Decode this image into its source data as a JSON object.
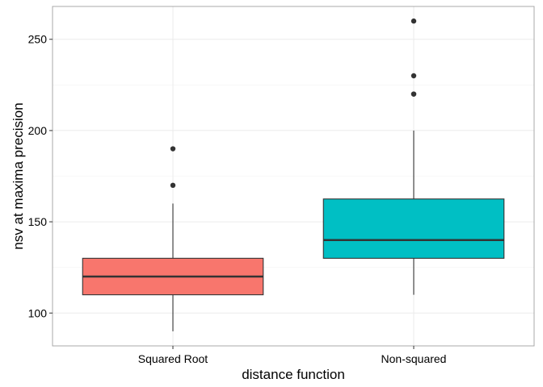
{
  "chart_data": {
    "type": "boxplot",
    "title": "",
    "xlabel": "distance function",
    "ylabel": "nsv at maxima precision",
    "categories": [
      "Squared Root",
      "Non-squared"
    ],
    "ylim": [
      82,
      268
    ],
    "yticks": [
      100,
      150,
      200,
      250
    ],
    "grid": true,
    "legend": "none",
    "boxes": [
      {
        "category": "Squared Root",
        "color": "#F8766D",
        "whisker_low": 90,
        "q1": 110,
        "median": 120,
        "q3": 130,
        "whisker_high": 160,
        "outliers": [
          170,
          190
        ]
      },
      {
        "category": "Non-squared",
        "color": "#00BFC4",
        "whisker_low": 110,
        "q1": 130,
        "median": 140,
        "q3": 162.5,
        "whisker_high": 200,
        "outliers": [
          220,
          220,
          230,
          260
        ]
      }
    ]
  }
}
